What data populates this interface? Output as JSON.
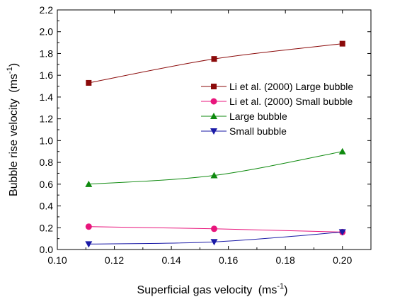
{
  "chart_data": {
    "type": "line",
    "title": "",
    "xlabel": "Superficial gas velocity",
    "xunit": "(ms",
    "xunit_exp": "-1",
    "xunit_close": ")",
    "ylabel": "Bubble rise velocity",
    "yunit": "(ms",
    "yunit_exp": "-1",
    "yunit_close": ")",
    "xlim": [
      0.1,
      0.21
    ],
    "ylim": [
      0.0,
      2.2
    ],
    "xticks": [
      "0.10",
      "0.12",
      "0.14",
      "0.16",
      "0.18",
      "0.20"
    ],
    "yticks": [
      "0.0",
      "0.2",
      "0.4",
      "0.6",
      "0.8",
      "1.0",
      "1.2",
      "1.4",
      "1.6",
      "1.8",
      "2.0",
      "2.2"
    ],
    "legend_position": "right",
    "series": [
      {
        "name": "Li et al. (2000) Large bubble",
        "x": [
          0.111,
          0.155,
          0.2
        ],
        "y": [
          1.53,
          1.75,
          1.89
        ],
        "color": "#8b0a0a",
        "marker": "square"
      },
      {
        "name": "Li et al. (2000) Small bubble",
        "x": [
          0.111,
          0.155,
          0.2
        ],
        "y": [
          0.21,
          0.19,
          0.16
        ],
        "color": "#e8157c",
        "marker": "circle"
      },
      {
        "name": "Large bubble",
        "x": [
          0.111,
          0.155,
          0.2
        ],
        "y": [
          0.6,
          0.68,
          0.9
        ],
        "color": "#0f8a0f",
        "marker": "triangle-up"
      },
      {
        "name": "Small bubble",
        "x": [
          0.111,
          0.155,
          0.2
        ],
        "y": [
          0.05,
          0.07,
          0.16
        ],
        "color": "#1a1aa6",
        "marker": "triangle-down"
      }
    ]
  }
}
